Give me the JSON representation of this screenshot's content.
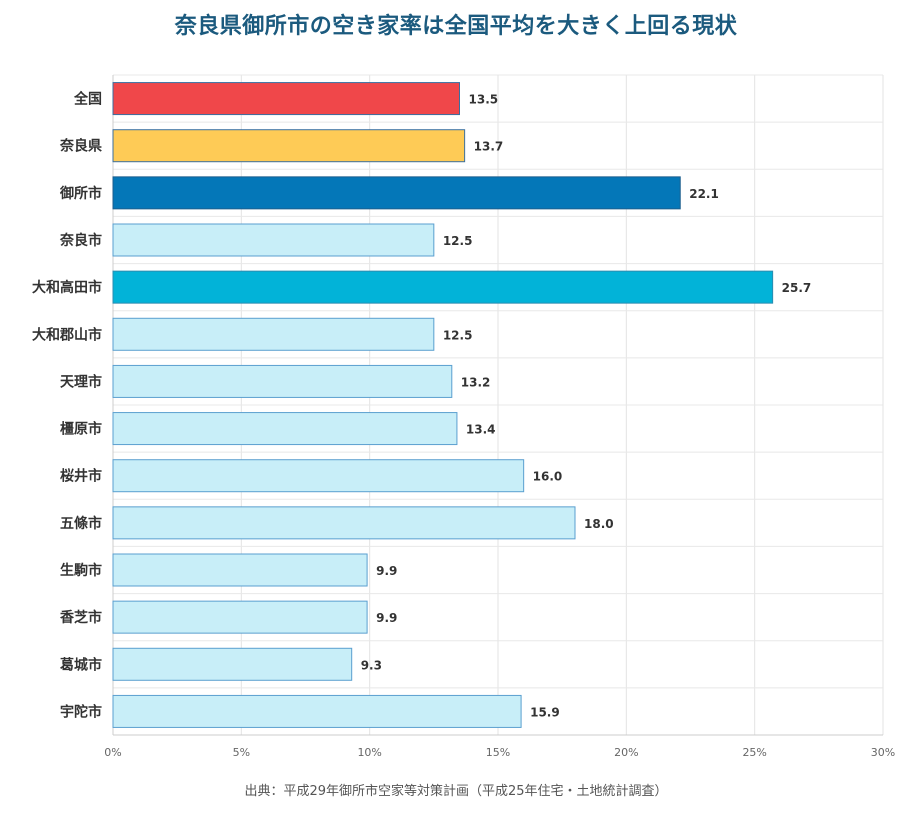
{
  "chart_data": {
    "type": "bar",
    "orientation": "horizontal",
    "title": "奈良県御所市の空き家率は全国平均を大きく上回る現状",
    "categories": [
      "全国",
      "奈良県",
      "御所市",
      "奈良市",
      "大和高田市",
      "大和郡山市",
      "天理市",
      "橿原市",
      "桜井市",
      "五條市",
      "生駒市",
      "香芝市",
      "葛城市",
      "宇陀市"
    ],
    "values": [
      13.5,
      13.7,
      22.1,
      12.5,
      25.7,
      12.5,
      13.2,
      13.4,
      16.0,
      18.0,
      9.9,
      9.9,
      9.3,
      15.9
    ],
    "value_labels": [
      "13.5",
      "13.7",
      "22.1",
      "12.5",
      "25.7",
      "12.5",
      "13.2",
      "13.4",
      "16.0",
      "18.0",
      "9.9",
      "9.9",
      "9.3",
      "15.9"
    ],
    "colors": [
      "#f0474a",
      "#fecb56",
      "#0477b8",
      "#c8eef8",
      "#02b3d8",
      "#c8eef8",
      "#c8eef8",
      "#c8eef8",
      "#c8eef8",
      "#c8eef8",
      "#c8eef8",
      "#c8eef8",
      "#c8eef8",
      "#c8eef8"
    ],
    "stroke_colors": [
      "#3a6fa0",
      "#3a6fa0",
      "#1c5e8e",
      "#5a9fcf",
      "#2a8cb0",
      "#5a9fcf",
      "#5a9fcf",
      "#5a9fcf",
      "#5a9fcf",
      "#5a9fcf",
      "#5a9fcf",
      "#5a9fcf",
      "#5a9fcf",
      "#5a9fcf"
    ],
    "xlim": [
      0,
      30
    ],
    "xticks": [
      0,
      5,
      10,
      15,
      20,
      25,
      30
    ],
    "xtick_labels": [
      "0%",
      "5%",
      "10%",
      "15%",
      "20%",
      "25%",
      "30%"
    ],
    "xlabel": "",
    "ylabel": "",
    "grid": true,
    "source": "出典：平成29年御所市空家等対策計画（平成25年住宅・土地統計調査）"
  }
}
